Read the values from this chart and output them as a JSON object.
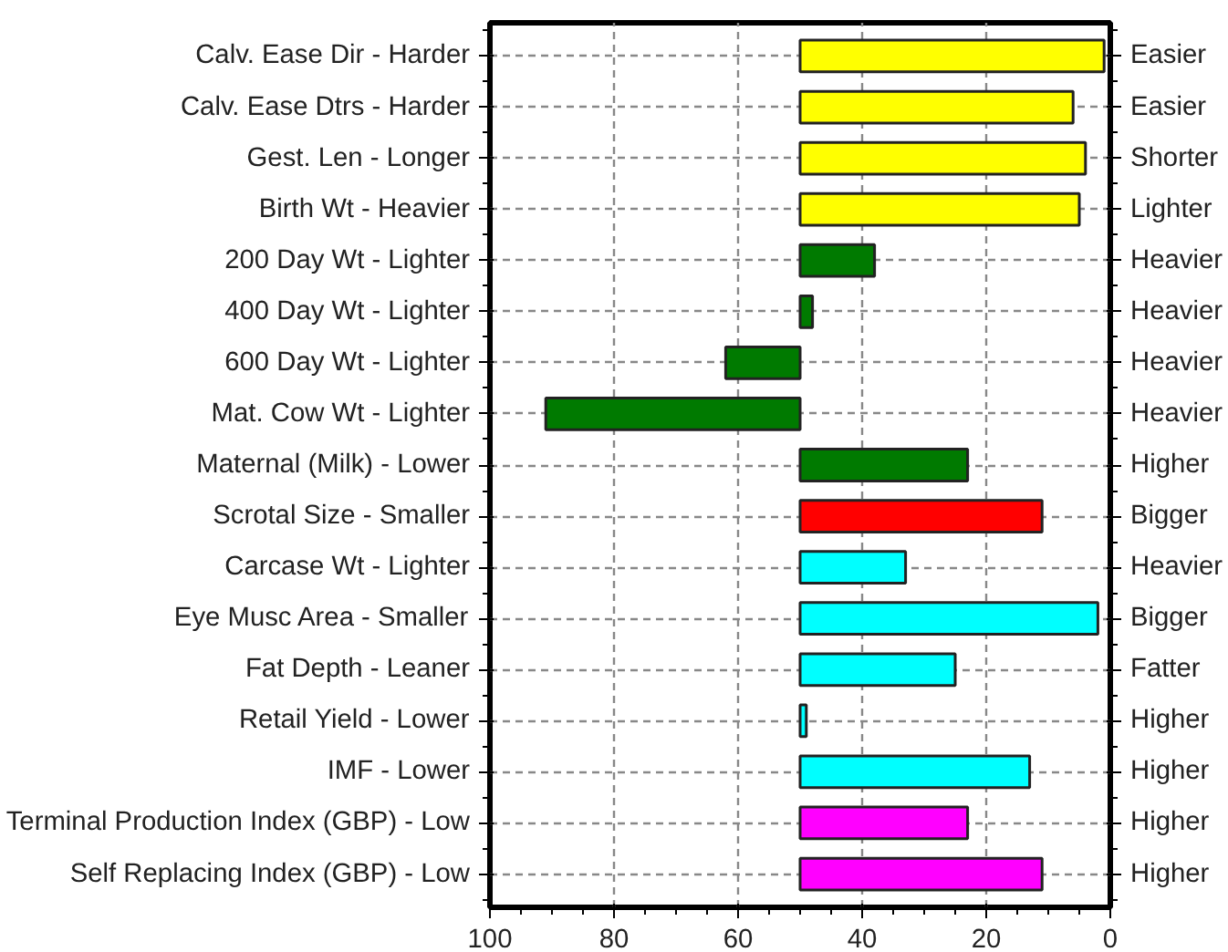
{
  "chart_data": {
    "type": "bar",
    "orientation": "horizontal",
    "categories": [
      "Calv. Ease Dir - Harder",
      "Calv. Ease Dtrs - Harder",
      "Gest. Len - Longer",
      "Birth Wt - Heavier",
      "200 Day Wt - Lighter",
      "400 Day Wt - Lighter",
      "600 Day Wt - Lighter",
      "Mat. Cow Wt - Lighter",
      "Maternal (Milk) - Lower",
      "Scrotal Size - Smaller",
      "Carcase Wt - Lighter",
      "Eye Musc Area - Smaller",
      "Fat Depth - Leaner",
      "Retail Yield - Lower",
      "IMF - Lower",
      "Terminal Production Index (GBP) - Low",
      "Self Replacing Index (GBP) - Low"
    ],
    "y2_categories": [
      "Easier",
      "Easier",
      "Shorter",
      "Lighter",
      "Heavier",
      "Heavier",
      "Heavier",
      "Heavier",
      "Higher",
      "Bigger",
      "Heavier",
      "Bigger",
      "Fatter",
      "Higher",
      "Higher",
      "Higher",
      "Higher"
    ],
    "base": [
      50,
      50,
      50,
      50,
      50,
      50,
      50,
      50,
      50,
      50,
      50,
      50,
      50,
      50,
      50,
      50,
      50
    ],
    "values": [
      -49,
      -44,
      -46,
      -45,
      -12,
      -2,
      12,
      41,
      -27,
      -39,
      -17,
      -48,
      -25,
      -1,
      -37,
      -27,
      -39
    ],
    "colors": [
      "#ffff00",
      "#ffff00",
      "#ffff00",
      "#ffff00",
      "#007a00",
      "#007a00",
      "#007a00",
      "#007a00",
      "#007a00",
      "#ff0000",
      "#00ffff",
      "#00ffff",
      "#00ffff",
      "#00ffff",
      "#00ffff",
      "#ff00ff",
      "#ff00ff"
    ],
    "xlim": [
      100,
      0
    ],
    "xticks": [
      100,
      80,
      60,
      40,
      20,
      0
    ],
    "grid": true
  }
}
